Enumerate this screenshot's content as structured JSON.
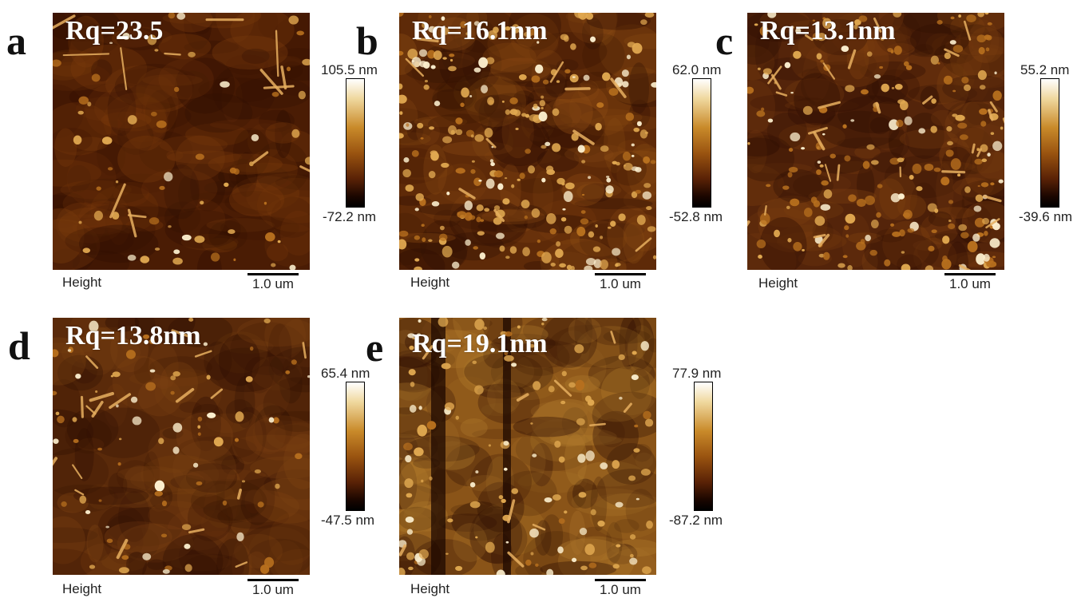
{
  "panels": [
    {
      "letter": "a",
      "rq": "Rq=23.5",
      "max": "105.5 nm",
      "min": "-72.2 nm",
      "height_label": "Height",
      "scale": "1.0 um"
    },
    {
      "letter": "b",
      "rq": "Rq=16.1nm",
      "max": "62.0 nm",
      "min": "-52.8 nm",
      "height_label": "Height",
      "scale": "1.0 um"
    },
    {
      "letter": "c",
      "rq": "Rq=13.1nm",
      "max": "55.2 nm",
      "min": "-39.6 nm",
      "height_label": "Height",
      "scale": "1.0 um"
    },
    {
      "letter": "d",
      "rq": "Rq=13.8nm",
      "max": "65.4 nm",
      "min": "-47.5 nm",
      "height_label": "Height",
      "scale": "1.0 um"
    },
    {
      "letter": "e",
      "rq": "Rq=19.1nm",
      "max": "77.9 nm",
      "min": "-87.2 nm",
      "height_label": "Height",
      "scale": "1.0 um"
    }
  ],
  "colors": {
    "afm_dark": "#3a1402",
    "afm_mid": "#8a4a12",
    "afm_bright": "#f3dfb0",
    "scale_line": "#000000"
  }
}
